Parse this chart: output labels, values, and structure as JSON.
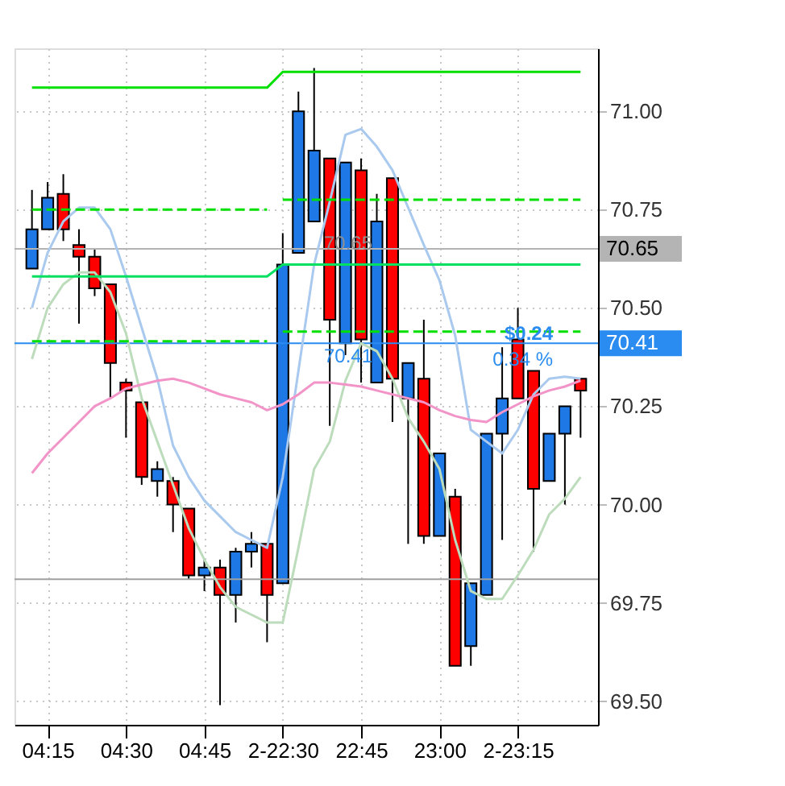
{
  "chart_data": {
    "type": "candlestick",
    "categories": [
      null,
      "04:15",
      null,
      null,
      null,
      null,
      "04:30",
      null,
      null,
      null,
      null,
      "04:45",
      null,
      null,
      null,
      null,
      "2-22:30",
      null,
      null,
      null,
      null,
      "22:45",
      null,
      null,
      null,
      null,
      "23:00",
      null,
      null,
      null,
      null,
      "2-23:15",
      null,
      null,
      null,
      null
    ],
    "ohlc": [
      [
        70.6,
        70.8,
        70.6,
        70.7
      ],
      [
        70.7,
        70.82,
        70.7,
        70.78
      ],
      [
        70.79,
        70.84,
        70.67,
        70.7
      ],
      [
        70.66,
        70.7,
        70.46,
        70.63
      ],
      [
        70.63,
        70.65,
        70.53,
        70.55
      ],
      [
        70.56,
        70.56,
        70.27,
        70.36
      ],
      [
        70.31,
        70.32,
        70.17,
        70.29
      ],
      [
        70.26,
        70.26,
        70.05,
        70.07
      ],
      [
        70.06,
        70.11,
        70.02,
        70.09
      ],
      [
        70.06,
        70.07,
        69.93,
        70.0
      ],
      [
        69.99,
        69.99,
        69.81,
        69.82
      ],
      [
        69.82,
        69.86,
        69.78,
        69.84
      ],
      [
        69.84,
        69.86,
        69.49,
        69.77
      ],
      [
        69.77,
        69.89,
        69.7,
        69.88
      ],
      [
        69.88,
        69.93,
        69.84,
        69.9
      ],
      [
        69.9,
        69.9,
        69.65,
        69.77
      ],
      [
        69.8,
        70.69,
        69.8,
        70.61
      ],
      [
        70.64,
        71.05,
        70.64,
        71.0
      ],
      [
        70.72,
        71.11,
        70.72,
        70.9
      ],
      [
        70.88,
        70.88,
        70.2,
        70.47
      ],
      [
        70.41,
        70.87,
        70.38,
        70.87
      ],
      [
        70.85,
        70.88,
        70.31,
        70.42
      ],
      [
        70.31,
        70.79,
        70.31,
        70.72
      ],
      [
        70.83,
        70.83,
        70.21,
        70.32
      ],
      [
        70.27,
        70.36,
        69.9,
        70.36
      ],
      [
        70.32,
        70.47,
        69.9,
        69.92
      ],
      [
        69.92,
        70.13,
        69.92,
        70.13
      ],
      [
        70.02,
        70.04,
        69.59,
        69.59
      ],
      [
        69.64,
        69.8,
        69.59,
        69.8
      ],
      [
        69.77,
        70.18,
        69.77,
        70.18
      ],
      [
        70.18,
        70.4,
        69.91,
        70.27
      ],
      [
        70.42,
        70.5,
        70.27,
        70.27
      ],
      [
        70.34,
        70.34,
        69.88,
        70.04
      ],
      [
        70.06,
        70.18,
        70.06,
        70.18
      ],
      [
        70.18,
        70.25,
        70.0,
        70.25
      ],
      [
        70.32,
        70.32,
        70.17,
        70.29
      ]
    ],
    "colors": [
      "#1e78e6",
      "#1e78e6",
      "#ff0000",
      "#ff0000",
      "#ff0000",
      "#ff0000",
      "#ff0000",
      "#ff0000",
      "#1e78e6",
      "#ff0000",
      "#ff0000",
      "#1e78e6",
      "#ff0000",
      "#1e78e6",
      "#1e78e6",
      "#ff0000",
      "#1e78e6",
      "#1e78e6",
      "#1e78e6",
      "#ff0000",
      "#1e78e6",
      "#ff0000",
      "#1e78e6",
      "#ff0000",
      "#1e78e6",
      "#ff0000",
      "#1e78e6",
      "#ff0000",
      "#1e78e6",
      "#1e78e6",
      "#1e78e6",
      "#ff0000",
      "#ff0000",
      "#1e78e6",
      "#1e78e6",
      "#ff0000"
    ],
    "series": [
      {
        "type": "line",
        "color": "#a9c9ee",
        "values": [
          70.5,
          70.64,
          70.72,
          70.755,
          70.755,
          70.7,
          70.58,
          70.45,
          70.32,
          70.15,
          70.07,
          70.01,
          69.97,
          69.93,
          69.91,
          69.89,
          70.07,
          70.34,
          70.61,
          70.77,
          70.94,
          70.955,
          70.91,
          70.85,
          70.755,
          70.66,
          70.57,
          70.43,
          70.19,
          70.16,
          70.13,
          70.19,
          70.28,
          70.32,
          70.325,
          70.32
        ]
      },
      {
        "type": "line",
        "color": "#bcdcbc",
        "values": [
          70.37,
          70.5,
          70.56,
          70.59,
          70.59,
          70.54,
          70.435,
          70.27,
          70.16,
          70.05,
          69.94,
          69.86,
          69.79,
          69.74,
          69.72,
          69.7,
          69.7,
          69.89,
          70.09,
          70.16,
          70.315,
          70.41,
          70.39,
          70.32,
          70.22,
          70.16,
          70.09,
          69.91,
          69.78,
          69.76,
          69.76,
          69.82,
          69.885,
          69.975,
          70.015,
          70.07
        ]
      },
      {
        "type": "line",
        "color": "#f294c8",
        "values": [
          70.08,
          70.13,
          70.17,
          70.21,
          70.25,
          70.27,
          70.295,
          70.305,
          70.315,
          70.32,
          70.31,
          70.295,
          70.28,
          70.27,
          70.26,
          70.24,
          70.255,
          70.28,
          70.31,
          70.31,
          70.305,
          70.3,
          70.29,
          70.28,
          70.27,
          70.26,
          70.24,
          70.225,
          70.215,
          70.21,
          70.235,
          70.255,
          70.275,
          70.29,
          70.3,
          70.315
        ]
      },
      {
        "type": "line",
        "color": "#00e000",
        "line_style": "solid",
        "values": [
          71.06,
          71.06,
          71.06,
          71.06,
          71.06,
          71.06,
          71.06,
          71.06,
          71.06,
          71.06,
          71.06,
          71.06,
          71.06,
          71.06,
          71.06,
          71.06,
          71.1,
          71.1,
          71.1,
          71.1,
          71.1,
          71.1,
          71.1,
          71.1,
          71.1,
          71.1,
          71.1,
          71.1,
          71.1,
          71.1,
          71.1,
          71.1,
          71.1,
          71.1,
          71.1,
          71.1
        ]
      },
      {
        "type": "line",
        "color": "#00e000",
        "line_style": "dashed",
        "values": [
          70.75,
          70.75,
          70.75,
          70.75,
          70.75,
          70.75,
          70.75,
          70.75,
          70.75,
          70.75,
          70.75,
          70.75,
          70.75,
          70.75,
          70.75,
          70.75,
          null,
          null,
          null,
          null,
          null,
          null,
          null,
          null,
          null,
          null,
          null,
          null,
          null,
          null,
          null,
          null,
          null,
          null,
          null,
          null
        ]
      },
      {
        "type": "line",
        "color": "#00e000",
        "line_style": "dashed",
        "values": [
          null,
          null,
          null,
          null,
          null,
          null,
          null,
          null,
          null,
          null,
          null,
          null,
          null,
          null,
          null,
          null,
          70.775,
          70.775,
          70.775,
          70.775,
          70.775,
          70.775,
          70.775,
          70.775,
          70.775,
          70.775,
          70.775,
          70.775,
          70.775,
          70.775,
          70.775,
          70.775,
          70.775,
          70.775,
          70.775,
          70.775
        ]
      },
      {
        "type": "line",
        "color": "#00e060",
        "line_style": "solid",
        "values": [
          70.58,
          70.58,
          70.58,
          70.58,
          70.58,
          70.58,
          70.58,
          70.58,
          70.58,
          70.58,
          70.58,
          70.58,
          70.58,
          70.58,
          70.58,
          70.58,
          70.61,
          70.61,
          70.61,
          70.61,
          70.61,
          70.61,
          70.61,
          70.61,
          70.61,
          70.61,
          70.61,
          70.61,
          70.61,
          70.61,
          70.61,
          70.61,
          70.61,
          70.61,
          70.61,
          70.61
        ]
      },
      {
        "type": "line",
        "color": "#00e000",
        "line_style": "dashed",
        "values": [
          70.415,
          70.415,
          70.415,
          70.415,
          70.415,
          70.415,
          70.415,
          70.415,
          70.415,
          70.415,
          70.415,
          70.415,
          70.415,
          70.415,
          70.415,
          70.415,
          null,
          null,
          null,
          null,
          null,
          null,
          null,
          null,
          null,
          null,
          null,
          null,
          null,
          null,
          null,
          null,
          null,
          null,
          null,
          null
        ]
      },
      {
        "type": "line",
        "color": "#00e000",
        "line_style": "dashed",
        "values": [
          null,
          null,
          null,
          null,
          null,
          null,
          null,
          null,
          null,
          null,
          null,
          null,
          null,
          null,
          null,
          null,
          70.44,
          70.44,
          70.44,
          70.44,
          70.44,
          70.44,
          70.44,
          70.44,
          70.44,
          70.44,
          70.44,
          70.44,
          70.44,
          70.44,
          70.44,
          70.44,
          70.44,
          70.44,
          70.44,
          70.44
        ]
      }
    ],
    "ref_lines": [
      {
        "axis": "y",
        "value": 69.81,
        "color": "#a0a0a0"
      },
      {
        "axis": "y",
        "value": 70.65,
        "label": "70.65",
        "color": "#b4b4b4"
      },
      {
        "axis": "y",
        "value": 70.41,
        "label": "70.41",
        "color": "#2a8cf0"
      }
    ],
    "annotations": [
      "70.65",
      "70.41",
      "$0.24",
      "0.34 %"
    ],
    "ylim": [
      69.44,
      71.16
    ],
    "yticks": [
      {
        "value": 69.5,
        "label": "69.50"
      },
      {
        "value": 69.75,
        "label": "69.75"
      },
      {
        "value": 70,
        "label": "70.00"
      },
      {
        "value": 70.25,
        "label": "70.25"
      },
      {
        "value": 70.5,
        "label": "70.50"
      },
      {
        "value": 70.75,
        "label": "70.75"
      },
      {
        "value": 71,
        "label": "71.00"
      }
    ],
    "grid": true
  }
}
